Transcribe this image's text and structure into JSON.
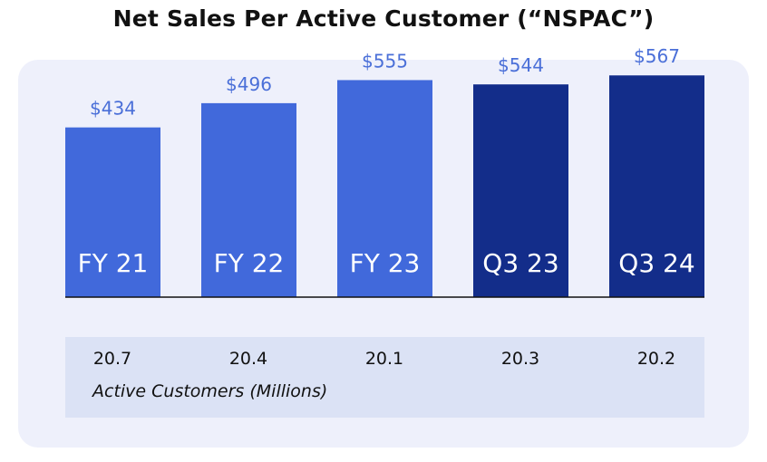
{
  "chart_data": {
    "type": "bar",
    "title": "Net Sales Per Active Customer (“NSPAC”)",
    "categories": [
      "FY 21",
      "FY 22",
      "FY 23",
      "Q3 23",
      "Q3 24"
    ],
    "values": [
      434,
      496,
      555,
      544,
      567
    ],
    "value_labels": [
      "$434",
      "$496",
      "$555",
      "$544",
      "$567"
    ],
    "ylim": [
      0,
      600
    ],
    "grid": false,
    "bar_colors": [
      "#4169db",
      "#4169db",
      "#4169db",
      "#132d8a",
      "#132d8a"
    ],
    "value_label_color": "#4a6fd8",
    "bar_label_color": "#ffffff",
    "active_customers": {
      "caption": "Active Customers (Millions)",
      "values": [
        "20.7",
        "20.4",
        "20.1",
        "20.3",
        "20.2"
      ]
    }
  }
}
